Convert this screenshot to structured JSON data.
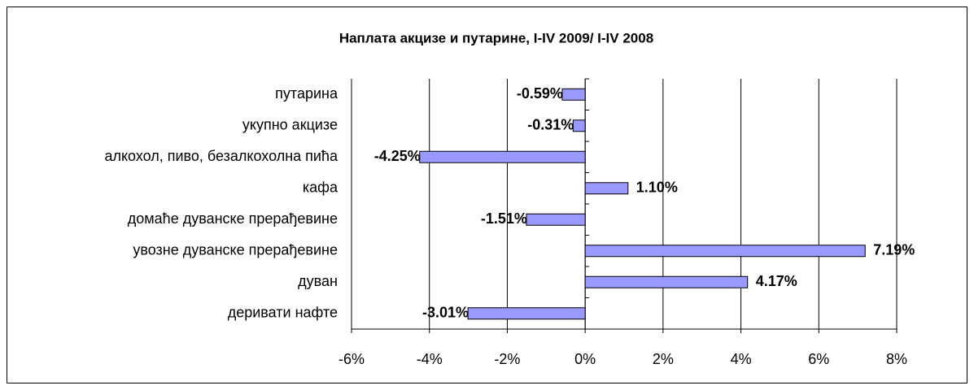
{
  "chart_data": {
    "type": "bar",
    "orientation": "horizontal",
    "title": "Наплата акцизе и путарине, I-IV 2009/ I-IV 2008",
    "categories": [
      "путарина",
      "укупно акцизе",
      "алкохол, пиво, безалкохолна пића",
      "кафа",
      "домаће дуванске прерађевине",
      "увозне дуванске прерађевине",
      "дуван",
      "деривати нафте"
    ],
    "values": [
      -0.59,
      -0.31,
      -4.25,
      1.1,
      -1.51,
      7.19,
      4.17,
      -3.01
    ],
    "value_labels": [
      "-0.59%",
      "-0.31%",
      "-4.25%",
      "1.10%",
      "-1.51%",
      "7.19%",
      "4.17%",
      "-3.01%"
    ],
    "color": "#9999ff",
    "xlim": [
      -6,
      8
    ],
    "xticks": [
      {
        "value": -6,
        "label": "-6%"
      },
      {
        "value": -4,
        "label": "-4%"
      },
      {
        "value": -2,
        "label": "-2%"
      },
      {
        "value": 0,
        "label": "0%"
      },
      {
        "value": 2,
        "label": "2%"
      },
      {
        "value": 4,
        "label": "4%"
      },
      {
        "value": 6,
        "label": "6%"
      },
      {
        "value": 8,
        "label": "8%"
      }
    ],
    "grid": true
  }
}
